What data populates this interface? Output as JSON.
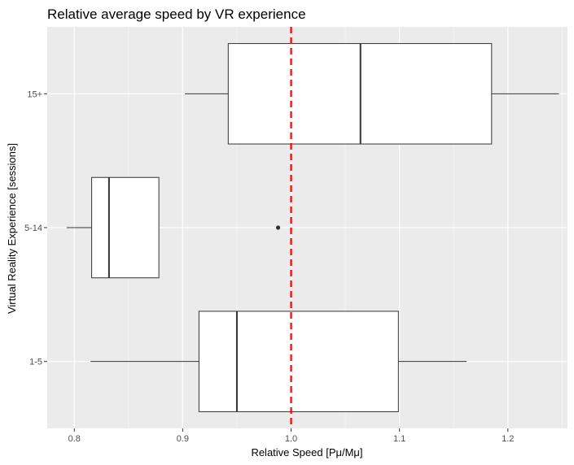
{
  "chart_data": {
    "type": "boxplot",
    "orientation": "horizontal",
    "title": "Relative average speed by VR experience",
    "xlabel": "Relative Speed [Pμ/Mμ]",
    "ylabel": "Virtual Reality Experience [sessions]",
    "xlim": [
      0.775,
      1.255
    ],
    "x_ticks": [
      0.8,
      0.9,
      1.0,
      1.1,
      1.2
    ],
    "x_tick_labels": [
      "0.8",
      "0.9",
      "1.0",
      "1.1",
      "1.2"
    ],
    "categories": [
      "1-5",
      "5-14",
      "15+"
    ],
    "boxes": [
      {
        "category": "1-5",
        "whisker_low": 0.815,
        "q1": 0.915,
        "median": 0.95,
        "q3": 1.099,
        "whisker_high": 1.162,
        "outliers": []
      },
      {
        "category": "5-14",
        "whisker_low": 0.793,
        "q1": 0.816,
        "median": 0.832,
        "q3": 0.878,
        "whisker_high": 0.878,
        "outliers": [
          0.988
        ]
      },
      {
        "category": "15+",
        "whisker_low": 0.902,
        "q1": 0.942,
        "median": 1.064,
        "q3": 1.185,
        "whisker_high": 1.247,
        "outliers": []
      }
    ],
    "reference_line": {
      "x": 1.0,
      "style": "dashed",
      "color": "#ff0000"
    },
    "grid": true,
    "colors": {
      "panel": "#ebebeb",
      "grid_major": "#ffffff",
      "box_fill": "#ffffff",
      "box_stroke": "#333333",
      "outlier": "#333333"
    }
  }
}
